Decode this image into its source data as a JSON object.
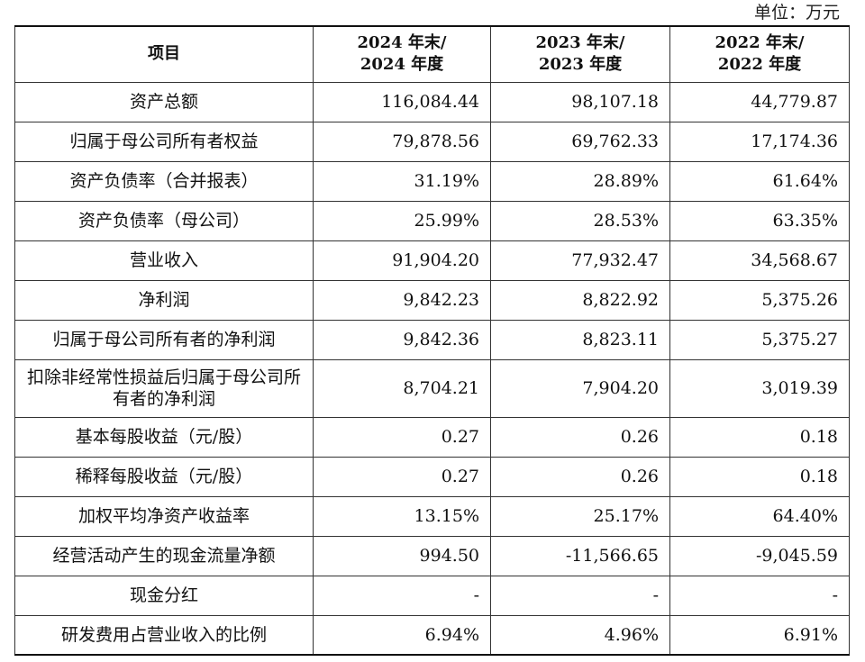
{
  "unit_label": "单位：万元",
  "table": {
    "header": {
      "item": "项目",
      "col_2024_line1": "2024 年末/",
      "col_2024_line2": "2024 年度",
      "col_2023_line1": "2023 年末/",
      "col_2023_line2": "2023 年度",
      "col_2022_line1": "2022 年末/",
      "col_2022_line2": "2022 年度"
    },
    "rows": [
      {
        "label": "资产总额",
        "v2024": "116,084.44",
        "v2023": "98,107.18",
        "v2022": "44,779.87"
      },
      {
        "label": "归属于母公司所有者权益",
        "v2024": "79,878.56",
        "v2023": "69,762.33",
        "v2022": "17,174.36"
      },
      {
        "label": "资产负债率（合并报表）",
        "v2024": "31.19%",
        "v2023": "28.89%",
        "v2022": "61.64%"
      },
      {
        "label": "资产负债率（母公司）",
        "v2024": "25.99%",
        "v2023": "28.53%",
        "v2022": "63.35%"
      },
      {
        "label": "营业收入",
        "v2024": "91,904.20",
        "v2023": "77,932.47",
        "v2022": "34,568.67"
      },
      {
        "label": "净利润",
        "v2024": "9,842.23",
        "v2023": "8,822.92",
        "v2022": "5,375.26"
      },
      {
        "label": "归属于母公司所有者的净利润",
        "v2024": "9,842.36",
        "v2023": "8,823.11",
        "v2022": "5,375.27"
      },
      {
        "label": "扣除非经常性损益后归属于母公司所有者的净利润",
        "v2024": "8,704.21",
        "v2023": "7,904.20",
        "v2022": "3,019.39"
      },
      {
        "label": "基本每股收益（元/股）",
        "v2024": "0.27",
        "v2023": "0.26",
        "v2022": "0.18"
      },
      {
        "label": "稀释每股收益（元/股）",
        "v2024": "0.27",
        "v2023": "0.26",
        "v2022": "0.18"
      },
      {
        "label": "加权平均净资产收益率",
        "v2024": "13.15%",
        "v2023": "25.17%",
        "v2022": "64.40%"
      },
      {
        "label": "经营活动产生的现金流量净额",
        "v2024": "994.50",
        "v2023": "-11,566.65",
        "v2022": "-9,045.59"
      },
      {
        "label": "现金分红",
        "v2024": "-",
        "v2023": "-",
        "v2022": "-"
      },
      {
        "label": "研发费用占营业收入的比例",
        "v2024": "6.94%",
        "v2023": "4.96%",
        "v2022": "6.91%"
      }
    ]
  }
}
